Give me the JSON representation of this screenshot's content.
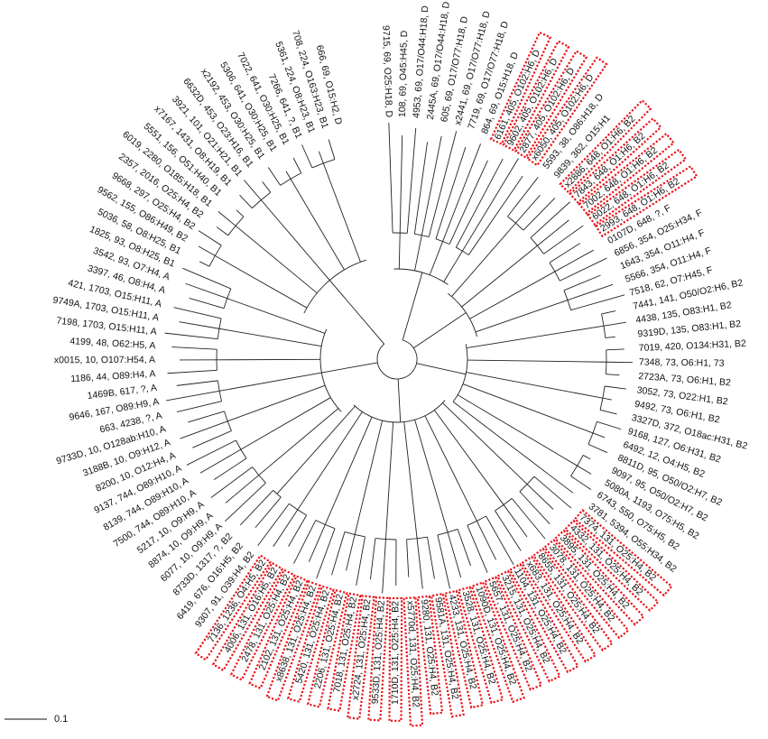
{
  "tree": {
    "scale_bar": {
      "value": 0.1,
      "label": "0.1"
    },
    "leaves": [
      {
        "label": "9715, 69, O25:H18, D",
        "highlighted": false
      },
      {
        "label": "108, 69, O45:H45, D",
        "highlighted": false
      },
      {
        "label": "4953, 69, O17/O44:H18, D",
        "highlighted": false
      },
      {
        "label": "2445A, 69, O17/O44:H18, D",
        "highlighted": false
      },
      {
        "label": "605, 69, O17/O77:H18, D",
        "highlighted": false
      },
      {
        "label": "x2441, 69, O17/O77:H18, D",
        "highlighted": false
      },
      {
        "label": "7719, 69, O17/O77:H18, D",
        "highlighted": false
      },
      {
        "label": "864, 69, O15:H18, D",
        "highlighted": false
      },
      {
        "label": "6161, 405, O102:H6, D",
        "highlighted": true
      },
      {
        "label": "9602, 405, O102:H6, D",
        "highlighted": true
      },
      {
        "label": "2877, 405, O102:H6, D",
        "highlighted": true
      },
      {
        "label": "x6050, 405, O102:H6, D",
        "highlighted": true
      },
      {
        "label": "5593, 38, O86:H18, D",
        "highlighted": false
      },
      {
        "label": "9839, 362, O15:H1",
        "highlighted": false
      },
      {
        "label": "x2886, 648, O1:H6, B2",
        "highlighted": true
      },
      {
        "label": "7843, 648, O1:H6, B2",
        "highlighted": true
      },
      {
        "label": "7002, 648, O1:H6, B2",
        "highlighted": true
      },
      {
        "label": "6022, 648, O1:H6, B2",
        "highlighted": true
      },
      {
        "label": "2993, 648, O1:H6, B2",
        "highlighted": true
      },
      {
        "label": "0107D, 648, ?, F",
        "highlighted": false
      },
      {
        "label": "6856, 354, O25:H34, F",
        "highlighted": false
      },
      {
        "label": "1643, 354, O11:H4, F",
        "highlighted": false
      },
      {
        "label": "5566, 354, O11:H4, F",
        "highlighted": false
      },
      {
        "label": "7518, 62, O7:H45, F",
        "highlighted": false
      },
      {
        "label": "7441, 141, O50/O2:H6, B2",
        "highlighted": false
      },
      {
        "label": "4438, 135, O83:H1, B2",
        "highlighted": false
      },
      {
        "label": "9319D, 135, O83:H1, B2",
        "highlighted": false
      },
      {
        "label": "7019, 420, O134:H31, B2",
        "highlighted": false
      },
      {
        "label": "7348, 73, O6:H1, 73",
        "highlighted": false
      },
      {
        "label": "2723A, 73, O6:H1, B2",
        "highlighted": false
      },
      {
        "label": "3052, 73, O22:H1, B2",
        "highlighted": false
      },
      {
        "label": "9492, 73, O6:H1, B2",
        "highlighted": false
      },
      {
        "label": "3327D, 372, O18ac:H31, B2",
        "highlighted": false
      },
      {
        "label": "9168, 127, O6:H31, B2",
        "highlighted": false
      },
      {
        "label": "6492, 12, O4:H5, B2",
        "highlighted": false
      },
      {
        "label": "8811D, 95, O50/O2:H7, B2",
        "highlighted": false
      },
      {
        "label": "9097, 95, O50/O2:H7, B2",
        "highlighted": false
      },
      {
        "label": "5080A, 1193, O75:H5, B2",
        "highlighted": false
      },
      {
        "label": "6743, 550, O75:H5, B2",
        "highlighted": false
      },
      {
        "label": "3781, 5394, O55:H34, B2",
        "highlighted": false
      },
      {
        "label": "7374, 131, O25:H4, B2",
        "highlighted": true
      },
      {
        "label": "4332, 131, O25:H4, B2",
        "highlighted": true
      },
      {
        "label": "3895, 131, O25:H4, B2",
        "highlighted": true
      },
      {
        "label": "3078, 131, O25:H4, B2",
        "highlighted": true
      },
      {
        "label": "8655, 131, O25:H4, B2",
        "highlighted": true
      },
      {
        "label": "x683, 131, O25:H4, B2",
        "highlighted": true
      },
      {
        "label": "1104, 131, O25:H4, B2",
        "highlighted": true
      },
      {
        "label": "3215, 131, O25:H4, B2",
        "highlighted": true
      },
      {
        "label": "5657, 131, O25:H4, B2",
        "highlighted": true
      },
      {
        "label": "1090D, 131, O25:H4, B2",
        "highlighted": true
      },
      {
        "label": "3528, 131, O25:H4, B2",
        "highlighted": true
      },
      {
        "label": "4233, 131, O25:H4, B2",
        "highlighted": true
      },
      {
        "label": "9581A, 131, O25:H4, B2",
        "highlighted": true
      },
      {
        "label": "9280, 131, O25:H4, B2",
        "highlighted": true
      },
      {
        "label": "x5770d, 131, O25:H4, B2",
        "highlighted": true
      },
      {
        "label": "1710D, 131, O25:H4, B2",
        "highlighted": true
      },
      {
        "label": "9533D, 131, O25:H4, B2",
        "highlighted": true
      },
      {
        "label": "x2724, 131, O25:H4, B2",
        "highlighted": true
      },
      {
        "label": "7018, 131, O25:H4, B2",
        "highlighted": true
      },
      {
        "label": "2206, 131, O25:H4, B2",
        "highlighted": true
      },
      {
        "label": "5420, 131, O25:H4, B2",
        "highlighted": true
      },
      {
        "label": "x8638, 131, O25:H4, B2",
        "highlighted": true
      },
      {
        "label": "2102, 131, O25:H4, B2",
        "highlighted": true
      },
      {
        "label": "2478, 131, O25:H4, B2",
        "highlighted": true
      },
      {
        "label": "4006, 131, O16:H5, B2",
        "highlighted": true
      },
      {
        "label": "7136, 1236, O4:H5, B2",
        "highlighted": true
      },
      {
        "label": "9307, 91, O39:H4, B2",
        "highlighted": false
      },
      {
        "label": "6419, 676, O16:H5, B2",
        "highlighted": false
      },
      {
        "label": "8733D, 1317, ?, B2",
        "highlighted": false
      },
      {
        "label": "6077, 10, O9:H9, A",
        "highlighted": false
      },
      {
        "label": "8874, 10, O9:H9, A",
        "highlighted": false
      },
      {
        "label": "5217, 10, O9:H9, A",
        "highlighted": false
      },
      {
        "label": "7500, 744, O89:H10, A",
        "highlighted": false
      },
      {
        "label": "8139, 744, O89:H10, A",
        "highlighted": false
      },
      {
        "label": "9137, 744, O89:H10, A",
        "highlighted": false
      },
      {
        "label": "8200, 10, O12:H4, A",
        "highlighted": false
      },
      {
        "label": "3188B, 10, O9:H12, A",
        "highlighted": false
      },
      {
        "label": "9733D, 10, O128ab:H10, A",
        "highlighted": false
      },
      {
        "label": "663, 4238, ?, A",
        "highlighted": false
      },
      {
        "label": "9646, 167, O89:H9, A",
        "highlighted": false
      },
      {
        "label": "1469B, 617, ?, A",
        "highlighted": false
      },
      {
        "label": "1186, 44, O89:H4, A",
        "highlighted": false
      },
      {
        "label": "x0015, 10, O107:H54, A",
        "highlighted": false
      },
      {
        "label": "4199, 48, O62:H5, A",
        "highlighted": false
      },
      {
        "label": "7198, 1703, O15:H11, A",
        "highlighted": false
      },
      {
        "label": "9749A, 1703, O15:H11, A",
        "highlighted": false
      },
      {
        "label": "421, 1703, O15:H11, A",
        "highlighted": false
      },
      {
        "label": "3397, 46, O8:H4, A",
        "highlighted": false
      },
      {
        "label": "3542, 93, O7:H4, A",
        "highlighted": false
      },
      {
        "label": "1825, 93, O8:H25, B1",
        "highlighted": false
      },
      {
        "label": "5036, 58, O8:H25, B1",
        "highlighted": false
      },
      {
        "label": "9562, 155, O86:H49, B2",
        "highlighted": false
      },
      {
        "label": "9668, 297, O25:H4, B2",
        "highlighted": false
      },
      {
        "label": "2357, 2016, O25:H4, B2",
        "highlighted": false
      },
      {
        "label": "6019, 2280, O185:H18, B1",
        "highlighted": false
      },
      {
        "label": "5551, 156, O51:H40, B1",
        "highlighted": false
      },
      {
        "label": "x7167, 1431, O8:H19, B1",
        "highlighted": false
      },
      {
        "label": "3921, 101, O21:H21, B1",
        "highlighted": false
      },
      {
        "label": "6632D, 453, O23:H16, B1",
        "highlighted": false
      },
      {
        "label": "x2192, 453, O30:H25, B1",
        "highlighted": false
      },
      {
        "label": "5306, 641, O30:H25, B1",
        "highlighted": false
      },
      {
        "label": "7022, 641, O30:H25, B1",
        "highlighted": false
      },
      {
        "label": "7266, 641, ?, B1",
        "highlighted": false
      },
      {
        "label": "5361, 224, O8:H23, B1",
        "highlighted": false
      },
      {
        "label": "708, 224, O163:H23, B1",
        "highlighted": false
      },
      {
        "label": "666, 69, O15:H2, D",
        "highlighted": false
      }
    ]
  }
}
